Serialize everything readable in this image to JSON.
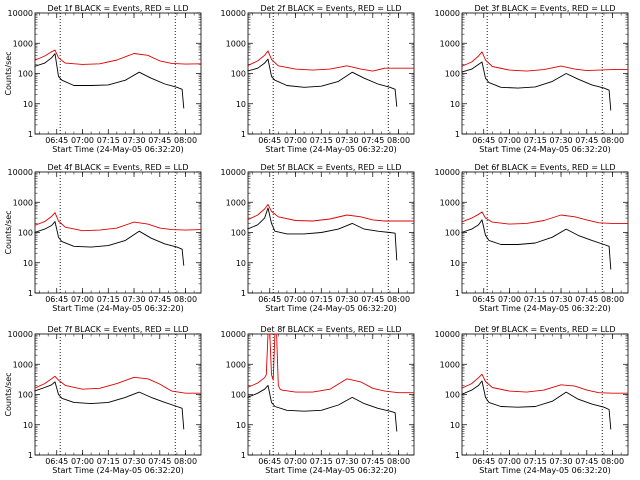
{
  "colors": {
    "events": "#000000",
    "lld": "#e00000",
    "axis": "#000000",
    "marker": "#000000"
  },
  "chart_data": [
    {
      "type": "line",
      "title": "Det 1f BLACK = Events, RED = LLD",
      "xlabel": "Start Time (24-May-05 06:32:20)",
      "ylabel": "Counts/sec",
      "yscale": "log",
      "ylim": [
        1,
        10000
      ],
      "xlim": [
        "06:32:20",
        "08:09:00"
      ],
      "xticks": [
        "06:45",
        "07:00",
        "07:15",
        "07:30",
        "07:45",
        "08:00"
      ],
      "yticks": [
        "1",
        "10",
        "100",
        "1000",
        "10000"
      ],
      "grid": false,
      "markers": [
        "06:47",
        "07:54"
      ],
      "series": [
        {
          "name": "BLACK = Events",
          "color": "#000000",
          "x": [
            "06:32",
            "06:38",
            "06:42",
            "06:44",
            "06:46",
            "06:48",
            "06:55",
            "07:05",
            "07:15",
            "07:25",
            "07:33",
            "07:40",
            "07:48",
            "07:55",
            "07:58",
            "07:59"
          ],
          "values": [
            170,
            220,
            330,
            450,
            80,
            60,
            40,
            40,
            42,
            60,
            110,
            70,
            45,
            35,
            30,
            7
          ]
        },
        {
          "name": "LLD",
          "color": "#e00000",
          "x": [
            "06:32",
            "06:38",
            "06:42",
            "06:44",
            "06:46",
            "06:50",
            "07:00",
            "07:10",
            "07:20",
            "07:30",
            "07:38",
            "07:45",
            "07:52",
            "08:00",
            "08:09"
          ],
          "values": [
            270,
            380,
            520,
            600,
            330,
            220,
            200,
            210,
            280,
            460,
            400,
            260,
            215,
            205,
            210
          ]
        }
      ]
    },
    {
      "type": "line",
      "title": "Det 2f BLACK = Events, RED = LLD",
      "xlabel": "Start Time (24-May-05 06:32:20)",
      "ylabel": "",
      "yscale": "log",
      "ylim": [
        1,
        10000
      ],
      "xlim": [
        "06:32:20",
        "08:09:00"
      ],
      "xticks": [
        "06:45",
        "07:00",
        "07:15",
        "07:30",
        "07:45",
        "08:00"
      ],
      "yticks": [
        "1",
        "10",
        "100",
        "1000",
        "10000"
      ],
      "grid": false,
      "markers": [
        "06:47",
        "07:54"
      ],
      "series": [
        {
          "name": "BLACK = Events",
          "color": "#000000",
          "x": [
            "06:32",
            "06:38",
            "06:42",
            "06:44",
            "06:46",
            "06:48",
            "06:55",
            "07:05",
            "07:15",
            "07:25",
            "07:33",
            "07:40",
            "07:48",
            "07:55",
            "07:58",
            "07:59"
          ],
          "values": [
            120,
            150,
            220,
            300,
            80,
            60,
            40,
            35,
            38,
            55,
            110,
            70,
            45,
            35,
            30,
            8
          ]
        },
        {
          "name": "LLD",
          "color": "#e00000",
          "x": [
            "06:32",
            "06:38",
            "06:42",
            "06:44",
            "06:46",
            "06:50",
            "07:00",
            "07:10",
            "07:20",
            "07:30",
            "07:38",
            "07:45",
            "07:52",
            "08:00",
            "08:09"
          ],
          "values": [
            180,
            260,
            400,
            560,
            290,
            180,
            140,
            130,
            140,
            180,
            140,
            120,
            150,
            150,
            150
          ]
        }
      ]
    },
    {
      "type": "line",
      "title": "Det 3f BLACK = Events, RED = LLD",
      "xlabel": "Start Time (24-May-05 06:32:20)",
      "ylabel": "",
      "yscale": "log",
      "ylim": [
        1,
        10000
      ],
      "xlim": [
        "06:32:20",
        "08:09:00"
      ],
      "xticks": [
        "06:45",
        "07:00",
        "07:15",
        "07:30",
        "07:45",
        "08:00"
      ],
      "yticks": [
        "1",
        "10",
        "100",
        "1000",
        "10000"
      ],
      "grid": false,
      "markers": [
        "06:47",
        "07:54"
      ],
      "series": [
        {
          "name": "BLACK = Events",
          "color": "#000000",
          "x": [
            "06:32",
            "06:38",
            "06:42",
            "06:44",
            "06:46",
            "06:48",
            "06:55",
            "07:05",
            "07:15",
            "07:25",
            "07:33",
            "07:40",
            "07:48",
            "07:55",
            "07:58",
            "07:59"
          ],
          "values": [
            110,
            140,
            200,
            240,
            70,
            50,
            35,
            33,
            36,
            55,
            100,
            65,
            42,
            33,
            28,
            6
          ]
        },
        {
          "name": "LLD",
          "color": "#e00000",
          "x": [
            "06:32",
            "06:38",
            "06:42",
            "06:44",
            "06:46",
            "06:50",
            "07:00",
            "07:10",
            "07:20",
            "07:30",
            "07:38",
            "07:45",
            "07:52",
            "08:00",
            "08:09"
          ],
          "values": [
            170,
            240,
            380,
            520,
            280,
            170,
            130,
            120,
            135,
            175,
            140,
            125,
            130,
            135,
            135
          ]
        }
      ]
    },
    {
      "type": "line",
      "title": "Det 4f BLACK = Events, RED = LLD",
      "xlabel": "Start Time (24-May-05 06:32:20)",
      "ylabel": "Counts/sec",
      "yscale": "log",
      "ylim": [
        1,
        10000
      ],
      "xlim": [
        "06:32:20",
        "08:09:00"
      ],
      "xticks": [
        "06:45",
        "07:00",
        "07:15",
        "07:30",
        "07:45",
        "08:00"
      ],
      "yticks": [
        "1",
        "10",
        "100",
        "1000",
        "10000"
      ],
      "grid": false,
      "markers": [
        "06:47",
        "07:54"
      ],
      "series": [
        {
          "name": "BLACK = Events",
          "color": "#000000",
          "x": [
            "06:32",
            "06:38",
            "06:42",
            "06:44",
            "06:46",
            "06:48",
            "06:55",
            "07:05",
            "07:15",
            "07:25",
            "07:33",
            "07:40",
            "07:48",
            "07:55",
            "07:58",
            "07:59"
          ],
          "values": [
            100,
            130,
            170,
            230,
            70,
            50,
            35,
            33,
            37,
            55,
            110,
            65,
            42,
            33,
            28,
            8
          ]
        },
        {
          "name": "LLD",
          "color": "#e00000",
          "x": [
            "06:32",
            "06:38",
            "06:42",
            "06:44",
            "06:46",
            "06:50",
            "07:00",
            "07:10",
            "07:20",
            "07:30",
            "07:38",
            "07:45",
            "07:52",
            "08:00",
            "08:09"
          ],
          "values": [
            170,
            230,
            340,
            450,
            240,
            150,
            115,
            120,
            140,
            220,
            190,
            140,
            125,
            120,
            125
          ]
        }
      ]
    },
    {
      "type": "line",
      "title": "Det 5f BLACK = Events, RED = LLD",
      "xlabel": "Start Time (24-May-05 06:32:20)",
      "ylabel": "",
      "yscale": "log",
      "ylim": [
        1,
        10000
      ],
      "xlim": [
        "06:32:20",
        "08:09:00"
      ],
      "xticks": [
        "06:45",
        "07:00",
        "07:15",
        "07:30",
        "07:45",
        "08:00"
      ],
      "yticks": [
        "1",
        "10",
        "100",
        "1000",
        "10000"
      ],
      "grid": false,
      "markers": [
        "06:47",
        "07:54"
      ],
      "series": [
        {
          "name": "BLACK = Events",
          "color": "#000000",
          "x": [
            "06:32",
            "06:38",
            "06:42",
            "06:44",
            "06:46",
            "06:48",
            "06:55",
            "07:05",
            "07:15",
            "07:25",
            "07:33",
            "07:40",
            "07:48",
            "07:55",
            "07:58",
            "07:59"
          ],
          "values": [
            130,
            180,
            300,
            650,
            200,
            110,
            90,
            90,
            100,
            130,
            200,
            130,
            110,
            100,
            95,
            12
          ]
        },
        {
          "name": "LLD",
          "color": "#e00000",
          "x": [
            "06:32",
            "06:38",
            "06:42",
            "06:44",
            "06:46",
            "06:50",
            "07:00",
            "07:10",
            "07:20",
            "07:30",
            "07:38",
            "07:45",
            "07:52",
            "08:00",
            "08:09"
          ],
          "values": [
            260,
            380,
            600,
            850,
            500,
            330,
            250,
            240,
            280,
            380,
            330,
            260,
            240,
            240,
            240
          ]
        }
      ]
    },
    {
      "type": "line",
      "title": "Det 6f BLACK = Events, RED = LLD",
      "xlabel": "Start Time (24-May-05 06:32:20)",
      "ylabel": "",
      "yscale": "log",
      "ylim": [
        1,
        10000
      ],
      "xlim": [
        "06:32:20",
        "08:09:00"
      ],
      "xticks": [
        "06:45",
        "07:00",
        "07:15",
        "07:30",
        "07:45",
        "08:00"
      ],
      "yticks": [
        "1",
        "10",
        "100",
        "1000",
        "10000"
      ],
      "grid": false,
      "markers": [
        "06:47",
        "07:54"
      ],
      "series": [
        {
          "name": "BLACK = Events",
          "color": "#000000",
          "x": [
            "06:32",
            "06:38",
            "06:42",
            "06:44",
            "06:46",
            "06:48",
            "06:55",
            "07:05",
            "07:15",
            "07:25",
            "07:33",
            "07:40",
            "07:48",
            "07:55",
            "07:58",
            "07:59"
          ],
          "values": [
            100,
            130,
            180,
            260,
            80,
            55,
            40,
            40,
            45,
            70,
            130,
            80,
            55,
            40,
            35,
            6
          ]
        },
        {
          "name": "LLD",
          "color": "#e00000",
          "x": [
            "06:32",
            "06:38",
            "06:42",
            "06:44",
            "06:46",
            "06:50",
            "07:00",
            "07:10",
            "07:20",
            "07:30",
            "07:38",
            "07:45",
            "07:52",
            "08:00",
            "08:09"
          ],
          "values": [
            220,
            300,
            400,
            480,
            300,
            220,
            190,
            200,
            250,
            380,
            330,
            260,
            210,
            200,
            200
          ]
        }
      ]
    },
    {
      "type": "line",
      "title": "Det 7f BLACK = Events, RED = LLD",
      "xlabel": "Start Time (24-May-05 06:32:20)",
      "ylabel": "Counts/sec",
      "yscale": "log",
      "ylim": [
        1,
        10000
      ],
      "xlim": [
        "06:32:20",
        "08:09:00"
      ],
      "xticks": [
        "06:45",
        "07:00",
        "07:15",
        "07:30",
        "07:45",
        "08:00"
      ],
      "yticks": [
        "1",
        "10",
        "100",
        "1000",
        "10000"
      ],
      "grid": false,
      "markers": [
        "06:47",
        "07:54"
      ],
      "series": [
        {
          "name": "BLACK = Events",
          "color": "#000000",
          "x": [
            "06:32",
            "06:38",
            "06:42",
            "06:44",
            "06:46",
            "06:48",
            "06:55",
            "07:05",
            "07:15",
            "07:25",
            "07:33",
            "07:40",
            "07:48",
            "07:55",
            "07:58",
            "07:59"
          ],
          "values": [
            130,
            170,
            210,
            260,
            100,
            75,
            55,
            50,
            55,
            80,
            120,
            80,
            55,
            40,
            35,
            7
          ]
        },
        {
          "name": "LLD",
          "color": "#e00000",
          "x": [
            "06:32",
            "06:38",
            "06:42",
            "06:44",
            "06:46",
            "06:50",
            "07:00",
            "07:10",
            "07:20",
            "07:30",
            "07:38",
            "07:45",
            "07:52",
            "08:00",
            "08:09"
          ],
          "values": [
            160,
            230,
            330,
            400,
            300,
            200,
            150,
            160,
            230,
            370,
            330,
            220,
            130,
            110,
            110
          ]
        }
      ]
    },
    {
      "type": "line",
      "title": "Det 8f BLACK = Events, RED = LLD",
      "xlabel": "Start Time (24-May-05 06:32:20)",
      "ylabel": "",
      "yscale": "log",
      "ylim": [
        1,
        10000
      ],
      "xlim": [
        "06:32:20",
        "08:09:00"
      ],
      "xticks": [
        "06:45",
        "07:00",
        "07:15",
        "07:30",
        "07:45",
        "08:00"
      ],
      "yticks": [
        "1",
        "10",
        "100",
        "1000",
        "10000"
      ],
      "grid": false,
      "markers": [
        "06:47",
        "07:54"
      ],
      "series": [
        {
          "name": "BLACK = Events",
          "color": "#000000",
          "x": [
            "06:32",
            "06:38",
            "06:42",
            "06:44",
            "06:46",
            "06:48",
            "06:55",
            "07:05",
            "07:15",
            "07:25",
            "07:33",
            "07:40",
            "07:48",
            "07:55",
            "07:58",
            "07:59"
          ],
          "values": [
            80,
            110,
            150,
            200,
            55,
            40,
            30,
            28,
            30,
            45,
            80,
            50,
            35,
            28,
            25,
            6
          ]
        },
        {
          "name": "LLD",
          "color": "#e00000",
          "x": [
            "06:32",
            "06:38",
            "06:42",
            "06:43",
            "06:44",
            "06:45",
            "06:46",
            "06:47",
            "06:48",
            "06:49",
            "06:50",
            "06:51",
            "06:52",
            "07:00",
            "07:10",
            "07:20",
            "07:30",
            "07:38",
            "07:45",
            "07:52",
            "08:00",
            "08:09"
          ],
          "values": [
            170,
            240,
            360,
            450,
            10000,
            10000,
            450,
            300,
            10000,
            10000,
            200,
            150,
            140,
            120,
            120,
            150,
            330,
            260,
            160,
            130,
            115,
            115
          ]
        }
      ]
    },
    {
      "type": "line",
      "title": "Det 9f BLACK = Events, RED = LLD",
      "xlabel": "Start Time (24-May-05 06:32:20)",
      "ylabel": "",
      "yscale": "log",
      "ylim": [
        1,
        10000
      ],
      "xlim": [
        "06:32:20",
        "08:09:00"
      ],
      "xticks": [
        "06:45",
        "07:00",
        "07:15",
        "07:30",
        "07:45",
        "08:00"
      ],
      "yticks": [
        "1",
        "10",
        "100",
        "1000",
        "10000"
      ],
      "grid": false,
      "markers": [
        "06:47",
        "07:54"
      ],
      "series": [
        {
          "name": "BLACK = Events",
          "color": "#000000",
          "x": [
            "06:32",
            "06:38",
            "06:42",
            "06:44",
            "06:46",
            "06:48",
            "06:55",
            "07:05",
            "07:15",
            "07:25",
            "07:33",
            "07:40",
            "07:48",
            "07:55",
            "07:58",
            "07:59"
          ],
          "values": [
            100,
            140,
            200,
            280,
            80,
            55,
            40,
            38,
            40,
            60,
            120,
            70,
            48,
            38,
            32,
            7
          ]
        },
        {
          "name": "LLD",
          "color": "#e00000",
          "x": [
            "06:32",
            "06:38",
            "06:42",
            "06:44",
            "06:46",
            "06:50",
            "07:00",
            "07:10",
            "07:20",
            "07:30",
            "07:38",
            "07:45",
            "07:52",
            "08:00",
            "08:09"
          ],
          "values": [
            160,
            230,
            360,
            470,
            270,
            170,
            130,
            120,
            140,
            210,
            190,
            140,
            115,
            110,
            110
          ]
        }
      ]
    }
  ]
}
